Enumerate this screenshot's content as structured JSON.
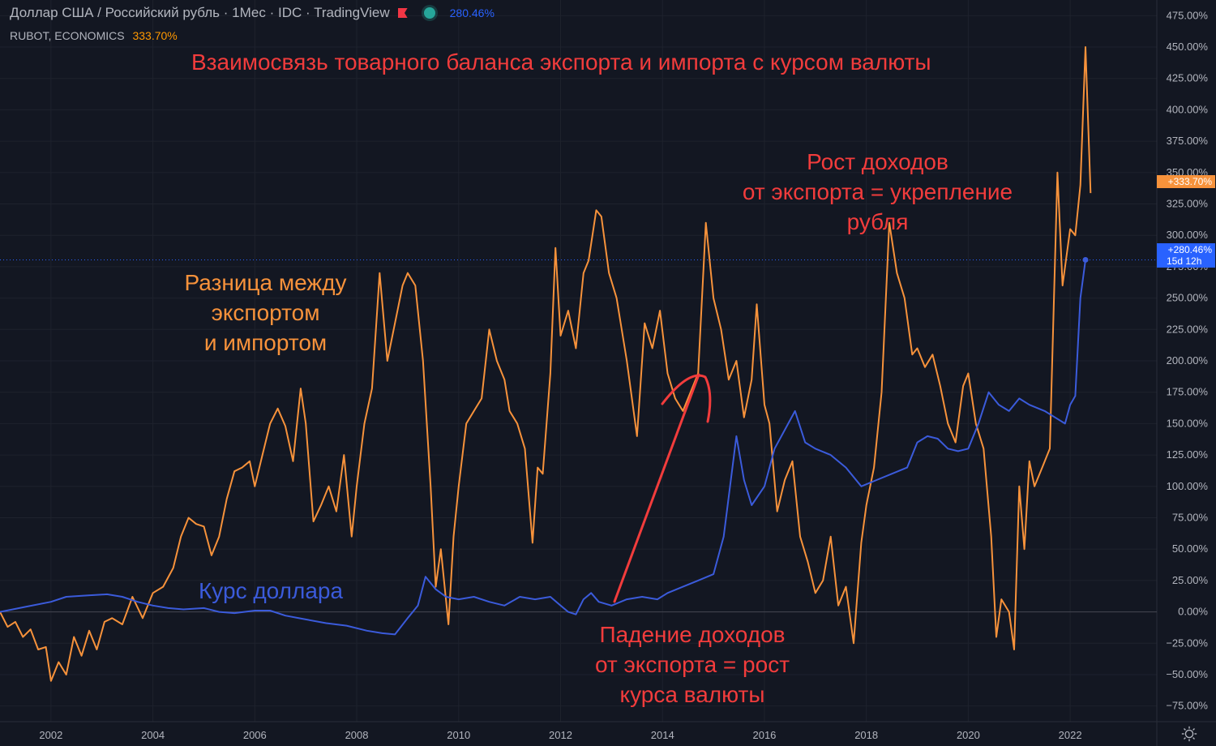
{
  "legend": {
    "symbol_text": "Доллар США / Российский рубль · 1Мес · IDC · TradingView",
    "symbol_change": "280.46%",
    "indicator_text": "RUBOT, ECONOMICS",
    "indicator_change": "333.70%"
  },
  "annotations": {
    "title": "Взаимосвязь товарного баланса экспорта и импорта с курсом валюты",
    "trade_label": [
      "Разница между",
      "экспортом",
      "и импортом"
    ],
    "fx_label": "Курс доллара",
    "rise_label": [
      "Рост доходов",
      "от экспорта = укрепление",
      "рубля"
    ],
    "fall_label": [
      "Падение доходов",
      "от экспорта = рост",
      "курса валюты"
    ]
  },
  "badges": {
    "orange_last": "+333.70%",
    "blue_last": "+280.46%",
    "blue_countdown": "15d 12h"
  },
  "colors": {
    "background": "#131722",
    "trade_line": "#f7923b",
    "fx_line": "#3b5bdb",
    "annot_red": "#f23c3c",
    "annot_orange": "#f7923b",
    "annot_blue": "#3b5bdb",
    "axis_text": "#b2b5be",
    "grid": "#1e222d"
  },
  "chart_data": {
    "type": "line",
    "y_unit": "%",
    "ylim": [
      -87.5,
      487.5
    ],
    "y_ticks": [
      -75,
      -50,
      -25,
      0,
      25,
      50,
      75,
      100,
      125,
      150,
      175,
      200,
      225,
      250,
      275,
      300,
      325,
      350,
      375,
      400,
      425,
      450,
      475
    ],
    "y_tick_labels": [
      "−75.00%",
      "−50.00%",
      "−25.00%",
      "0.00%",
      "25.00%",
      "50.00%",
      "75.00%",
      "100.00%",
      "125.00%",
      "150.00%",
      "175.00%",
      "200.00%",
      "225.00%",
      "250.00%",
      "275.00%",
      "300.00%",
      "325.00%",
      "350.00%",
      "375.00%",
      "400.00%",
      "425.00%",
      "450.00%",
      "475.00%"
    ],
    "xlim": [
      2001.0,
      2023.7
    ],
    "x_ticks": [
      2002,
      2004,
      2006,
      2008,
      2010,
      2012,
      2014,
      2016,
      2018,
      2020,
      2022
    ],
    "x_tick_labels": [
      "2002",
      "2004",
      "2006",
      "2008",
      "2010",
      "2012",
      "2014",
      "2016",
      "2018",
      "2020",
      "2022"
    ],
    "series": [
      {
        "legend": "RUBOT, ECONOMICS",
        "last_value": 333.7,
        "points": [
          [
            2001.0,
            0
          ],
          [
            2001.15,
            -12
          ],
          [
            2001.3,
            -8
          ],
          [
            2001.45,
            -20
          ],
          [
            2001.6,
            -14
          ],
          [
            2001.75,
            -30
          ],
          [
            2001.9,
            -28
          ],
          [
            2002.0,
            -55
          ],
          [
            2002.15,
            -40
          ],
          [
            2002.3,
            -50
          ],
          [
            2002.45,
            -20
          ],
          [
            2002.6,
            -35
          ],
          [
            2002.75,
            -15
          ],
          [
            2002.9,
            -30
          ],
          [
            2003.05,
            -8
          ],
          [
            2003.2,
            -5
          ],
          [
            2003.4,
            -10
          ],
          [
            2003.6,
            12
          ],
          [
            2003.8,
            -5
          ],
          [
            2004.0,
            15
          ],
          [
            2004.2,
            20
          ],
          [
            2004.4,
            35
          ],
          [
            2004.55,
            60
          ],
          [
            2004.7,
            75
          ],
          [
            2004.85,
            70
          ],
          [
            2005.0,
            68
          ],
          [
            2005.15,
            45
          ],
          [
            2005.3,
            60
          ],
          [
            2005.45,
            90
          ],
          [
            2005.6,
            112
          ],
          [
            2005.75,
            115
          ],
          [
            2005.9,
            120
          ],
          [
            2006.0,
            100
          ],
          [
            2006.15,
            125
          ],
          [
            2006.3,
            150
          ],
          [
            2006.45,
            162
          ],
          [
            2006.6,
            148
          ],
          [
            2006.75,
            120
          ],
          [
            2006.9,
            178
          ],
          [
            2007.0,
            150
          ],
          [
            2007.15,
            72
          ],
          [
            2007.3,
            85
          ],
          [
            2007.45,
            100
          ],
          [
            2007.6,
            80
          ],
          [
            2007.75,
            125
          ],
          [
            2007.9,
            60
          ],
          [
            2008.0,
            100
          ],
          [
            2008.15,
            150
          ],
          [
            2008.3,
            178
          ],
          [
            2008.45,
            270
          ],
          [
            2008.6,
            200
          ],
          [
            2008.75,
            230
          ],
          [
            2008.9,
            260
          ],
          [
            2009.0,
            270
          ],
          [
            2009.15,
            260
          ],
          [
            2009.3,
            200
          ],
          [
            2009.45,
            100
          ],
          [
            2009.55,
            20
          ],
          [
            2009.65,
            50
          ],
          [
            2009.8,
            -10
          ],
          [
            2009.9,
            60
          ],
          [
            2010.0,
            100
          ],
          [
            2010.15,
            150
          ],
          [
            2010.3,
            160
          ],
          [
            2010.45,
            170
          ],
          [
            2010.6,
            225
          ],
          [
            2010.75,
            200
          ],
          [
            2010.9,
            185
          ],
          [
            2011.0,
            160
          ],
          [
            2011.15,
            150
          ],
          [
            2011.3,
            130
          ],
          [
            2011.45,
            55
          ],
          [
            2011.55,
            115
          ],
          [
            2011.65,
            110
          ],
          [
            2011.8,
            190
          ],
          [
            2011.9,
            290
          ],
          [
            2012.0,
            220
          ],
          [
            2012.15,
            240
          ],
          [
            2012.3,
            210
          ],
          [
            2012.45,
            270
          ],
          [
            2012.55,
            280
          ],
          [
            2012.7,
            320
          ],
          [
            2012.8,
            315
          ],
          [
            2012.95,
            270
          ],
          [
            2013.1,
            250
          ],
          [
            2013.3,
            200
          ],
          [
            2013.5,
            140
          ],
          [
            2013.65,
            230
          ],
          [
            2013.8,
            210
          ],
          [
            2013.95,
            240
          ],
          [
            2014.1,
            190
          ],
          [
            2014.25,
            170
          ],
          [
            2014.4,
            160
          ],
          [
            2014.55,
            175
          ],
          [
            2014.7,
            190
          ],
          [
            2014.85,
            310
          ],
          [
            2015.0,
            250
          ],
          [
            2015.15,
            225
          ],
          [
            2015.3,
            185
          ],
          [
            2015.45,
            200
          ],
          [
            2015.6,
            155
          ],
          [
            2015.75,
            185
          ],
          [
            2015.85,
            245
          ],
          [
            2016.0,
            165
          ],
          [
            2016.1,
            150
          ],
          [
            2016.25,
            80
          ],
          [
            2016.4,
            105
          ],
          [
            2016.55,
            120
          ],
          [
            2016.7,
            60
          ],
          [
            2016.85,
            40
          ],
          [
            2017.0,
            15
          ],
          [
            2017.15,
            25
          ],
          [
            2017.3,
            60
          ],
          [
            2017.45,
            5
          ],
          [
            2017.6,
            20
          ],
          [
            2017.75,
            -25
          ],
          [
            2017.9,
            55
          ],
          [
            2018.0,
            85
          ],
          [
            2018.15,
            115
          ],
          [
            2018.3,
            175
          ],
          [
            2018.45,
            310
          ],
          [
            2018.6,
            270
          ],
          [
            2018.75,
            250
          ],
          [
            2018.9,
            205
          ],
          [
            2019.0,
            210
          ],
          [
            2019.15,
            195
          ],
          [
            2019.3,
            205
          ],
          [
            2019.45,
            180
          ],
          [
            2019.6,
            150
          ],
          [
            2019.75,
            135
          ],
          [
            2019.9,
            180
          ],
          [
            2020.0,
            190
          ],
          [
            2020.15,
            150
          ],
          [
            2020.3,
            130
          ],
          [
            2020.45,
            60
          ],
          [
            2020.55,
            -20
          ],
          [
            2020.65,
            10
          ],
          [
            2020.8,
            0
          ],
          [
            2020.9,
            -30
          ],
          [
            2021.0,
            100
          ],
          [
            2021.1,
            50
          ],
          [
            2021.2,
            120
          ],
          [
            2021.3,
            100
          ],
          [
            2021.45,
            115
          ],
          [
            2021.6,
            130
          ],
          [
            2021.75,
            350
          ],
          [
            2021.85,
            260
          ],
          [
            2022.0,
            305
          ],
          [
            2022.1,
            300
          ],
          [
            2022.2,
            340
          ],
          [
            2022.3,
            450
          ],
          [
            2022.4,
            333.7
          ]
        ]
      },
      {
        "legend": "Доллар США / Российский рубль",
        "last_value": 280.46,
        "points": [
          [
            2001.0,
            0
          ],
          [
            2001.5,
            4
          ],
          [
            2002.0,
            8
          ],
          [
            2002.3,
            12
          ],
          [
            2002.7,
            13
          ],
          [
            2003.1,
            14
          ],
          [
            2003.4,
            12
          ],
          [
            2003.7,
            8
          ],
          [
            2004.0,
            5
          ],
          [
            2004.3,
            3
          ],
          [
            2004.6,
            2
          ],
          [
            2005.0,
            3
          ],
          [
            2005.3,
            0
          ],
          [
            2005.6,
            -1
          ],
          [
            2006.0,
            1
          ],
          [
            2006.3,
            1
          ],
          [
            2006.6,
            -3
          ],
          [
            2007.0,
            -6
          ],
          [
            2007.4,
            -9
          ],
          [
            2007.8,
            -11
          ],
          [
            2008.2,
            -15
          ],
          [
            2008.5,
            -17
          ],
          [
            2008.75,
            -18
          ],
          [
            2009.0,
            -5
          ],
          [
            2009.2,
            5
          ],
          [
            2009.35,
            28
          ],
          [
            2009.55,
            18
          ],
          [
            2009.75,
            12
          ],
          [
            2010.0,
            10
          ],
          [
            2010.3,
            12
          ],
          [
            2010.6,
            8
          ],
          [
            2010.9,
            5
          ],
          [
            2011.2,
            12
          ],
          [
            2011.5,
            10
          ],
          [
            2011.8,
            12
          ],
          [
            2012.0,
            5
          ],
          [
            2012.15,
            0
          ],
          [
            2012.3,
            -2
          ],
          [
            2012.45,
            10
          ],
          [
            2012.6,
            15
          ],
          [
            2012.75,
            8
          ],
          [
            2013.0,
            5
          ],
          [
            2013.3,
            10
          ],
          [
            2013.6,
            12
          ],
          [
            2013.9,
            10
          ],
          [
            2014.1,
            15
          ],
          [
            2014.4,
            20
          ],
          [
            2014.7,
            25
          ],
          [
            2015.0,
            30
          ],
          [
            2015.2,
            60
          ],
          [
            2015.45,
            140
          ],
          [
            2015.6,
            105
          ],
          [
            2015.75,
            85
          ],
          [
            2016.0,
            100
          ],
          [
            2016.2,
            130
          ],
          [
            2016.4,
            145
          ],
          [
            2016.6,
            160
          ],
          [
            2016.8,
            135
          ],
          [
            2017.0,
            130
          ],
          [
            2017.3,
            125
          ],
          [
            2017.6,
            115
          ],
          [
            2017.9,
            100
          ],
          [
            2018.2,
            105
          ],
          [
            2018.5,
            110
          ],
          [
            2018.8,
            115
          ],
          [
            2019.0,
            135
          ],
          [
            2019.2,
            140
          ],
          [
            2019.4,
            138
          ],
          [
            2019.6,
            130
          ],
          [
            2019.8,
            128
          ],
          [
            2020.0,
            130
          ],
          [
            2020.2,
            150
          ],
          [
            2020.4,
            175
          ],
          [
            2020.6,
            165
          ],
          [
            2020.8,
            160
          ],
          [
            2021.0,
            170
          ],
          [
            2021.2,
            165
          ],
          [
            2021.5,
            160
          ],
          [
            2021.7,
            155
          ],
          [
            2021.9,
            150
          ],
          [
            2022.0,
            165
          ],
          [
            2022.1,
            172
          ],
          [
            2022.2,
            250
          ],
          [
            2022.3,
            280.46
          ]
        ]
      }
    ]
  }
}
